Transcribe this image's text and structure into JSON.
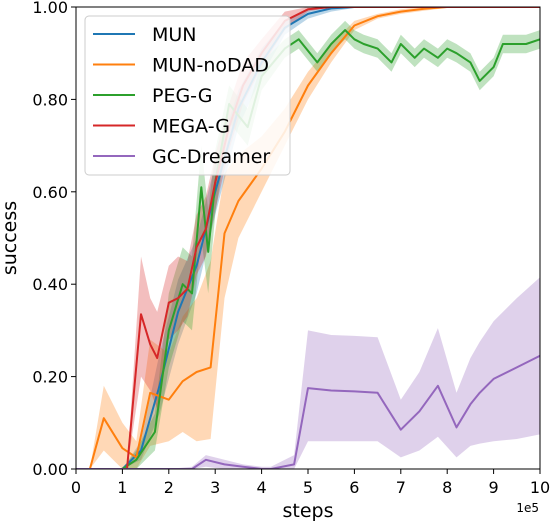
{
  "chart_data": {
    "type": "line",
    "xlabel": "steps",
    "ylabel": "success",
    "x_offset_text": "1e5",
    "xlim": [
      0,
      10
    ],
    "ylim": [
      0,
      1
    ],
    "xticks": [
      "0",
      "1",
      "2",
      "3",
      "4",
      "5",
      "6",
      "7",
      "8",
      "9",
      "10"
    ],
    "yticks": [
      "0.00",
      "0.20",
      "0.40",
      "0.60",
      "0.80",
      "1.00"
    ],
    "grid": false,
    "legend_position": "top-left",
    "series": [
      {
        "name": "MUN",
        "color": "#1f77b4",
        "x": [
          0,
          1.0,
          1.4,
          1.8,
          2.2,
          2.6,
          3.0,
          3.5,
          4.0,
          4.5,
          5.0,
          5.5,
          6.0,
          7.0,
          8.0,
          9.0,
          10.0
        ],
        "y": [
          0,
          0,
          0.04,
          0.18,
          0.34,
          0.44,
          0.6,
          0.78,
          0.88,
          0.955,
          0.985,
          0.997,
          1.0,
          1.0,
          1.0,
          1.0,
          1.0
        ],
        "lower": [
          0,
          0,
          0.02,
          0.12,
          0.27,
          0.38,
          0.55,
          0.74,
          0.85,
          0.94,
          0.975,
          0.99,
          0.998,
          1.0,
          1.0,
          1.0,
          1.0
        ],
        "upper": [
          0,
          0,
          0.06,
          0.25,
          0.41,
          0.5,
          0.66,
          0.82,
          0.91,
          0.97,
          0.995,
          1.0,
          1.0,
          1.0,
          1.0,
          1.0,
          1.0
        ]
      },
      {
        "name": "MUN-noDAD",
        "color": "#ff7f0e",
        "x": [
          0,
          0.3,
          0.6,
          1.0,
          1.3,
          1.6,
          2.0,
          2.3,
          2.6,
          2.9,
          3.2,
          3.5,
          4.0,
          4.5,
          5.0,
          5.5,
          6.0,
          6.5,
          7.0,
          7.5,
          8.0,
          8.5,
          9.0,
          10.0
        ],
        "y": [
          0,
          0,
          0.11,
          0.045,
          0.025,
          0.165,
          0.15,
          0.19,
          0.21,
          0.22,
          0.51,
          0.58,
          0.65,
          0.73,
          0.83,
          0.9,
          0.96,
          0.98,
          0.99,
          0.996,
          1.0,
          1.0,
          1.0,
          1.0
        ],
        "lower": [
          0,
          0,
          0.04,
          0.0,
          0.0,
          0.05,
          0.06,
          0.08,
          0.06,
          0.065,
          0.37,
          0.5,
          0.6,
          0.7,
          0.8,
          0.88,
          0.95,
          0.975,
          0.985,
          0.992,
          0.998,
          1.0,
          1.0,
          1.0
        ],
        "upper": [
          0,
          0,
          0.18,
          0.1,
          0.06,
          0.28,
          0.25,
          0.33,
          0.37,
          0.45,
          0.64,
          0.68,
          0.72,
          0.78,
          0.86,
          0.92,
          0.97,
          0.985,
          0.995,
          1.0,
          1.0,
          1.0,
          1.0,
          1.0
        ]
      },
      {
        "name": "PEG-G",
        "color": "#2ca02c",
        "x": [
          0,
          1.0,
          1.3,
          1.7,
          2.0,
          2.3,
          2.5,
          2.7,
          2.85,
          3.0,
          3.3,
          3.7,
          4.0,
          4.5,
          4.8,
          5.2,
          5.5,
          5.8,
          6.0,
          6.2,
          6.5,
          6.8,
          7.0,
          7.3,
          7.5,
          7.8,
          8.0,
          8.2,
          8.5,
          8.7,
          9.0,
          9.2,
          9.5,
          9.7,
          10.0
        ],
        "y": [
          0,
          0,
          0.02,
          0.08,
          0.3,
          0.4,
          0.38,
          0.61,
          0.47,
          0.62,
          0.79,
          0.74,
          0.85,
          0.91,
          0.93,
          0.88,
          0.92,
          0.95,
          0.93,
          0.92,
          0.91,
          0.88,
          0.92,
          0.89,
          0.91,
          0.89,
          0.91,
          0.9,
          0.88,
          0.84,
          0.87,
          0.92,
          0.92,
          0.92,
          0.93
        ],
        "lower": [
          0,
          0,
          0.0,
          0.04,
          0.22,
          0.32,
          0.3,
          0.5,
          0.38,
          0.55,
          0.75,
          0.7,
          0.82,
          0.89,
          0.91,
          0.86,
          0.9,
          0.93,
          0.91,
          0.9,
          0.89,
          0.86,
          0.9,
          0.87,
          0.89,
          0.87,
          0.89,
          0.88,
          0.86,
          0.82,
          0.85,
          0.9,
          0.9,
          0.9,
          0.91
        ],
        "upper": [
          0,
          0,
          0.04,
          0.12,
          0.38,
          0.48,
          0.46,
          0.7,
          0.56,
          0.69,
          0.83,
          0.78,
          0.88,
          0.93,
          0.95,
          0.9,
          0.94,
          0.97,
          0.95,
          0.94,
          0.93,
          0.9,
          0.94,
          0.91,
          0.93,
          0.91,
          0.93,
          0.92,
          0.9,
          0.86,
          0.89,
          0.94,
          0.94,
          0.94,
          0.95
        ]
      },
      {
        "name": "MEGA-G",
        "color": "#d62728",
        "x": [
          0,
          1.0,
          1.1,
          1.4,
          1.6,
          1.75,
          2.0,
          2.2,
          2.4,
          2.6,
          2.8,
          3.0,
          3.3,
          3.6,
          4.0,
          4.5,
          5.0,
          5.5,
          6.0,
          10.0
        ],
        "y": [
          0,
          0,
          0.0,
          0.335,
          0.27,
          0.24,
          0.36,
          0.37,
          0.39,
          0.48,
          0.52,
          0.62,
          0.74,
          0.83,
          0.9,
          0.97,
          0.995,
          1.0,
          1.0,
          1.0
        ],
        "lower": [
          0,
          0,
          0.0,
          0.2,
          0.17,
          0.13,
          0.28,
          0.3,
          0.33,
          0.42,
          0.46,
          0.56,
          0.69,
          0.79,
          0.87,
          0.95,
          0.99,
          1.0,
          1.0,
          1.0
        ],
        "upper": [
          0,
          0,
          0.0,
          0.46,
          0.37,
          0.34,
          0.44,
          0.46,
          0.45,
          0.55,
          0.59,
          0.68,
          0.79,
          0.88,
          0.93,
          0.99,
          1.0,
          1.0,
          1.0,
          1.0
        ]
      },
      {
        "name": "GC-Dreamer",
        "color": "#9467bd",
        "x": [
          0,
          1.0,
          2.0,
          2.5,
          2.8,
          3.2,
          3.6,
          4.0,
          4.2,
          4.7,
          5.0,
          5.5,
          6.0,
          6.5,
          7.0,
          7.4,
          7.8,
          8.2,
          8.5,
          8.7,
          9.0,
          9.5,
          10.0
        ],
        "y": [
          0,
          0,
          0,
          0.0,
          0.02,
          0.01,
          0.005,
          0.0,
          0.0,
          0.01,
          0.175,
          0.17,
          0.168,
          0.165,
          0.085,
          0.125,
          0.18,
          0.09,
          0.14,
          0.165,
          0.195,
          0.22,
          0.245
        ],
        "lower": [
          0,
          0,
          0,
          0.0,
          0.005,
          0.0,
          0.0,
          0.0,
          0.0,
          0.0,
          0.06,
          0.06,
          0.06,
          0.06,
          0.025,
          0.04,
          0.07,
          0.025,
          0.05,
          0.055,
          0.06,
          0.065,
          0.075
        ],
        "upper": [
          0,
          0,
          0,
          0.005,
          0.03,
          0.02,
          0.01,
          0.005,
          0.005,
          0.03,
          0.3,
          0.29,
          0.288,
          0.285,
          0.15,
          0.21,
          0.305,
          0.165,
          0.24,
          0.275,
          0.32,
          0.37,
          0.415
        ]
      }
    ]
  }
}
